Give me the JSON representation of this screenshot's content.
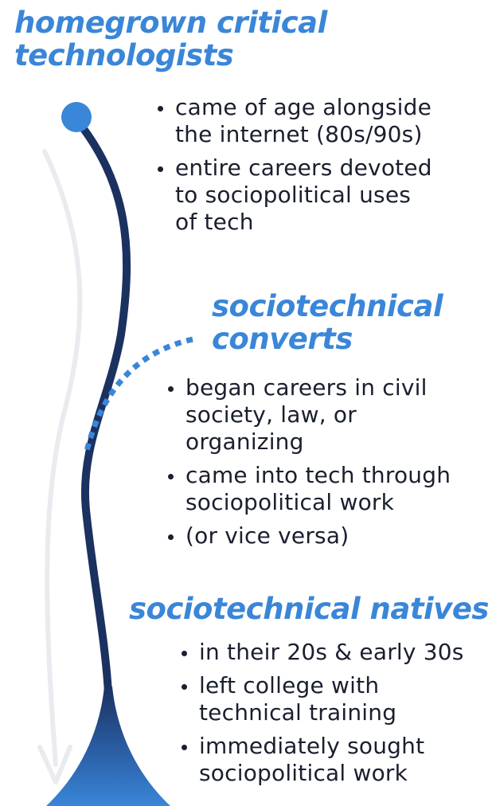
{
  "colors": {
    "heading": "#3a86d8",
    "timeline": "#1b3160",
    "timeline_dot": "#3a86d8",
    "dotted_branch": "#3a86d8",
    "time_arrow": "#e9ebef",
    "text": "#1a1f2e"
  },
  "groups": [
    {
      "title_lines": [
        "homegrown critical",
        "technologists"
      ],
      "bullets": [
        [
          "came of age alongside",
          "the internet (80s/90s)"
        ],
        [
          "entire careers devoted",
          "to sociopolitical uses",
          "of tech"
        ]
      ]
    },
    {
      "title_lines": [
        "sociotechnical",
        "converts"
      ],
      "bullets": [
        [
          "began careers in civil",
          "society, law, or",
          "organizing"
        ],
        [
          "came into tech through",
          "sociopolitical work"
        ],
        [
          "(or vice versa)"
        ]
      ]
    },
    {
      "title_lines": [
        "sociotechnical natives"
      ],
      "bullets": [
        [
          "in their 20s & early 30s"
        ],
        [
          "left college with",
          "technical training"
        ],
        [
          "immediately sought",
          "sociopolitical work"
        ]
      ]
    }
  ]
}
